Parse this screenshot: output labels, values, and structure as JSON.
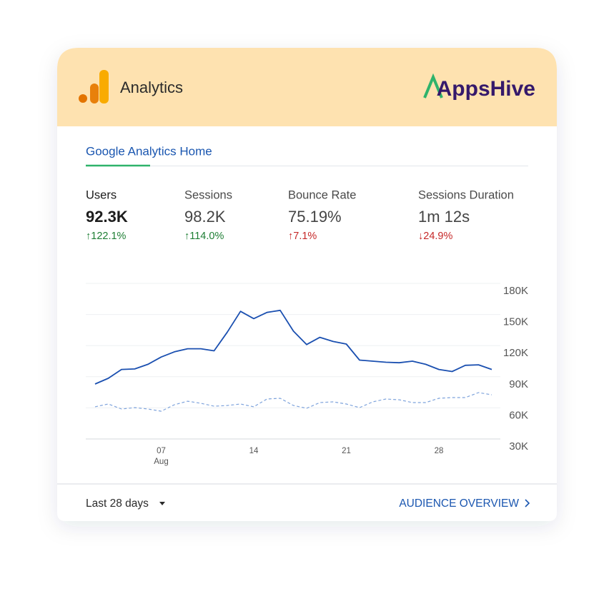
{
  "header": {
    "title": "Analytics",
    "brand": "AppsHive"
  },
  "tab": "Google Analytics Home",
  "metrics": [
    {
      "label": "Users",
      "value": "92.3K",
      "change": "↑122.1%",
      "color": "#1e7e34"
    },
    {
      "label": "Sessions",
      "value": "98.2K",
      "change": "↑114.0%",
      "color": "#1e7e34"
    },
    {
      "label": "Bounce Rate",
      "value": "75.19%",
      "change": "↑7.1%",
      "color": "#c62828"
    },
    {
      "label": "Sessions Duration",
      "value": "1m 12s",
      "change": "↓24.9%",
      "color": "#c62828"
    }
  ],
  "chart_data": {
    "type": "line",
    "categories": [
      null,
      null,
      null,
      null,
      null,
      "07",
      null,
      null,
      null,
      null,
      null,
      null,
      "14",
      null,
      null,
      null,
      null,
      null,
      null,
      "21",
      null,
      null,
      null,
      null,
      null,
      null,
      "28",
      null,
      null,
      null,
      null
    ],
    "month": "Aug",
    "series": [
      {
        "color": "#1a4fb0",
        "dashed": false,
        "values": [
          83000,
          88500,
          97000,
          97500,
          102000,
          109000,
          114000,
          117000,
          117000,
          115000,
          133000,
          153000,
          146000,
          152000,
          154000,
          134000,
          121000,
          128000,
          124000,
          121500,
          106000,
          105000,
          104000,
          103500,
          105000,
          102000,
          97000,
          95000,
          101000,
          101500,
          97000
        ]
      },
      {
        "color": "#7ea3dc",
        "dashed": true,
        "values": [
          61000,
          63700,
          58900,
          60200,
          58900,
          56800,
          63000,
          66400,
          64400,
          61600,
          62300,
          63700,
          61000,
          68500,
          69200,
          62300,
          59600,
          65100,
          65800,
          63700,
          60200,
          65800,
          68500,
          67800,
          65100,
          65100,
          69200,
          69900,
          69900,
          74700,
          72600
        ]
      }
    ],
    "ylim": [
      30000,
      180000
    ],
    "yticks": [
      {
        "value": 30000,
        "label": "30K"
      },
      {
        "value": 60000,
        "label": "60K"
      },
      {
        "value": 90000,
        "label": "90K"
      },
      {
        "value": 120000,
        "label": "120K"
      },
      {
        "value": 150000,
        "label": "150K"
      },
      {
        "value": 180000,
        "label": "180K"
      }
    ],
    "grid": true
  },
  "footer": {
    "range": "Last 28 days",
    "link": "AUDIENCE OVERVIEW"
  }
}
